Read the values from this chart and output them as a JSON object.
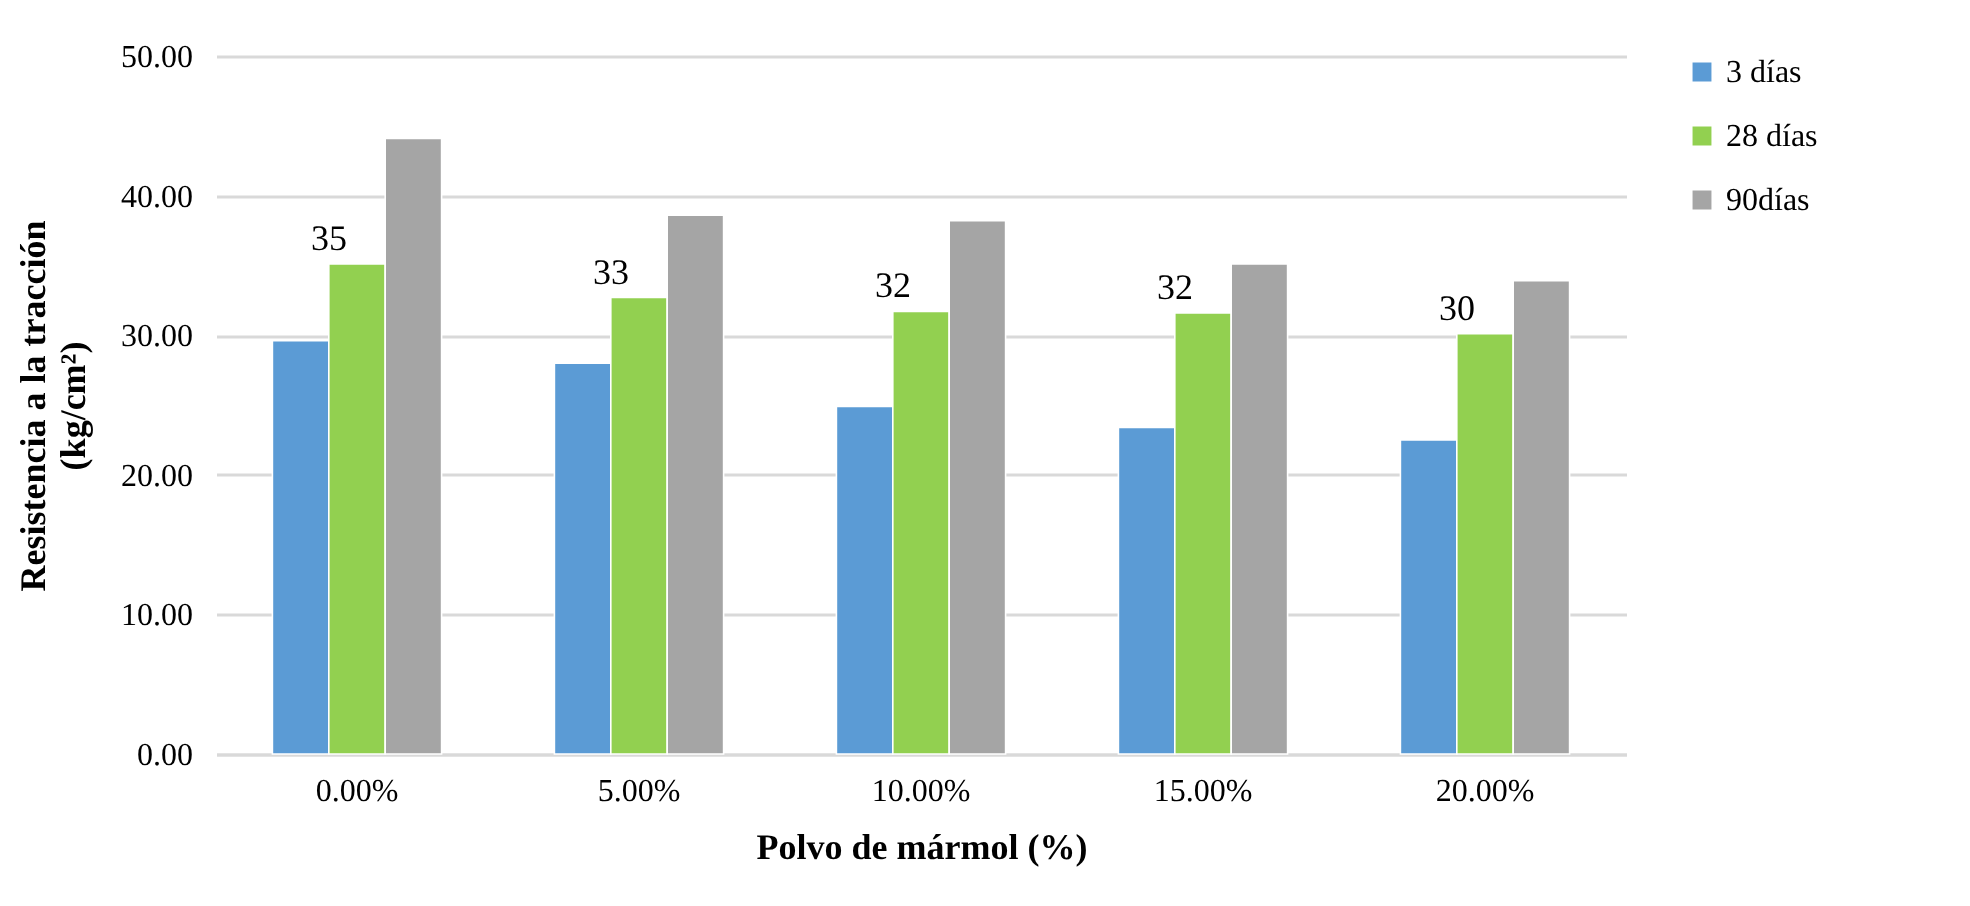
{
  "chart_data": {
    "type": "bar",
    "xlabel": "Polvo de mármol (%)",
    "ylabel": "Resistencia a la tracción (kg/cm²)",
    "categories": [
      "0.00%",
      "5.00%",
      "10.00%",
      "15.00%",
      "20.00%"
    ],
    "series": [
      {
        "name": "3 días",
        "color": "#5b9bd5",
        "values": [
          29.6,
          28.0,
          24.9,
          23.4,
          22.5
        ]
      },
      {
        "name": "28 días",
        "color": "#92d050",
        "values": [
          35.1,
          32.7,
          31.7,
          31.6,
          30.1
        ],
        "value_labels": [
          "35",
          "33",
          "32",
          "32",
          "30"
        ]
      },
      {
        "name": "90días",
        "color": "#a5a5a5",
        "values": [
          44.1,
          38.6,
          38.2,
          35.1,
          33.9
        ]
      }
    ],
    "ylim": [
      0,
      50
    ],
    "yticks": [
      {
        "value": 0,
        "label": "0.00"
      },
      {
        "value": 10,
        "label": "10.00"
      },
      {
        "value": 20,
        "label": "20.00"
      },
      {
        "value": 30,
        "label": "30.00"
      },
      {
        "value": 40,
        "label": "40.00"
      },
      {
        "value": 50,
        "label": "50.00"
      }
    ],
    "grid": "y",
    "legend": "right"
  }
}
